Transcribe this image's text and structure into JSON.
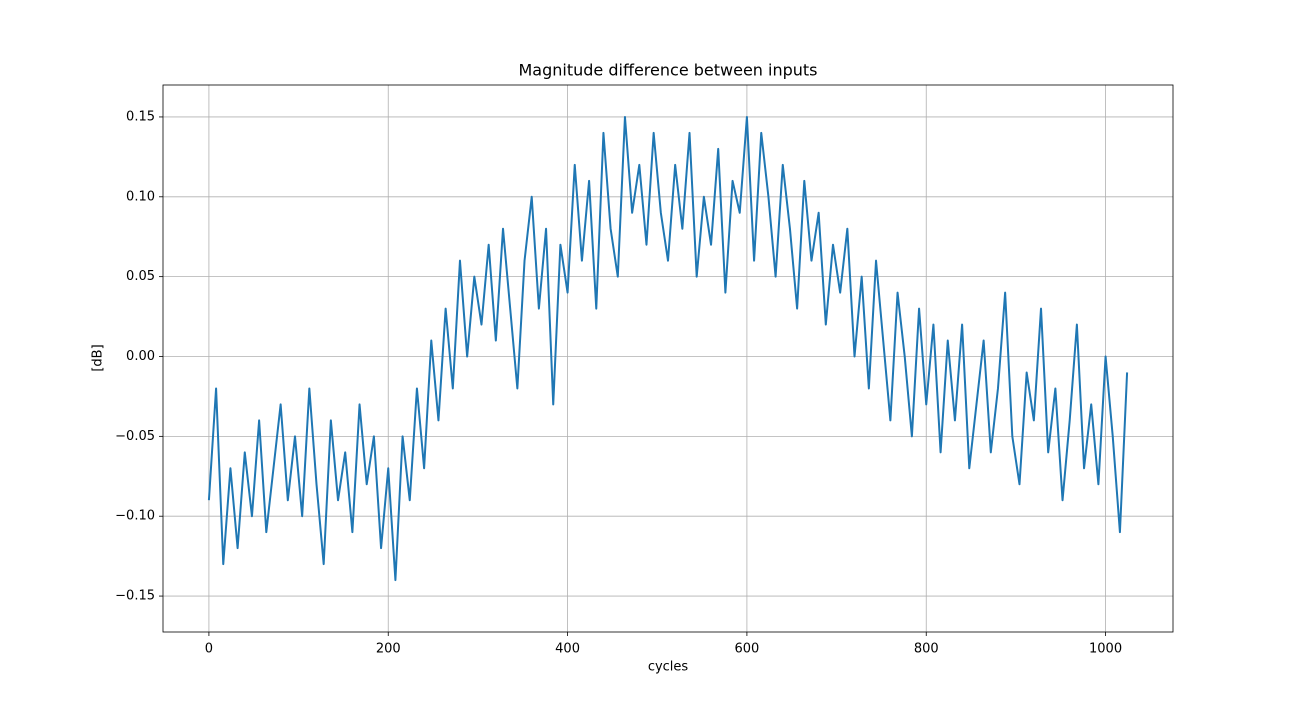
{
  "chart_data": {
    "type": "line",
    "title": "Magnitude difference between inputs",
    "xlabel": "cycles",
    "ylabel": "[dB]",
    "color": "#1f77b4",
    "grid": true,
    "xlim": [
      -51.2,
      1075.2
    ],
    "ylim": [
      -0.1725,
      0.17
    ],
    "xticks": [
      0,
      200,
      400,
      600,
      800,
      1000
    ],
    "yticks": [
      {
        "value": -0.15,
        "label": "−0.15"
      },
      {
        "value": -0.1,
        "label": "−0.10"
      },
      {
        "value": -0.05,
        "label": "−0.05"
      },
      {
        "value": 0,
        "label": "0.00"
      },
      0.05,
      {
        "value": 0.1,
        "label": "0.10"
      },
      0.15
    ],
    "x": [
      0,
      8,
      16,
      24,
      32,
      40,
      48,
      56,
      64,
      72,
      80,
      88,
      96,
      104,
      112,
      120,
      128,
      136,
      144,
      152,
      160,
      168,
      176,
      184,
      192,
      200,
      208,
      216,
      224,
      232,
      240,
      248,
      256,
      264,
      272,
      280,
      288,
      296,
      304,
      312,
      320,
      328,
      336,
      344,
      352,
      360,
      368,
      376,
      384,
      392,
      400,
      408,
      416,
      424,
      432,
      440,
      448,
      456,
      464,
      472,
      480,
      488,
      496,
      504,
      512,
      520,
      528,
      536,
      544,
      552,
      560,
      568,
      576,
      584,
      592,
      600,
      608,
      616,
      624,
      632,
      640,
      648,
      656,
      664,
      672,
      680,
      688,
      696,
      704,
      712,
      720,
      728,
      736,
      744,
      752,
      760,
      768,
      776,
      784,
      792,
      800,
      808,
      816,
      824,
      832,
      840,
      848,
      856,
      864,
      872,
      880,
      888,
      896,
      904,
      912,
      920,
      928,
      936,
      944,
      952,
      960,
      968,
      976,
      984,
      992,
      1000,
      1008,
      1016,
      1024
    ],
    "values": [
      -0.09,
      -0.02,
      -0.13,
      -0.07,
      -0.12,
      -0.06,
      -0.1,
      -0.04,
      -0.11,
      -0.07,
      -0.03,
      -0.09,
      -0.05,
      -0.1,
      -0.02,
      -0.08,
      -0.13,
      -0.04,
      -0.09,
      -0.06,
      -0.11,
      -0.03,
      -0.08,
      -0.05,
      -0.12,
      -0.07,
      -0.14,
      -0.05,
      -0.09,
      -0.02,
      -0.07,
      0.01,
      -0.04,
      0.03,
      -0.02,
      0.06,
      0.0,
      0.05,
      0.02,
      0.07,
      0.01,
      0.08,
      0.03,
      -0.02,
      0.06,
      0.1,
      0.03,
      0.08,
      -0.03,
      0.07,
      0.04,
      0.12,
      0.06,
      0.11,
      0.03,
      0.14,
      0.08,
      0.05,
      0.15,
      0.09,
      0.12,
      0.07,
      0.14,
      0.09,
      0.06,
      0.12,
      0.08,
      0.14,
      0.05,
      0.1,
      0.07,
      0.13,
      0.04,
      0.11,
      0.09,
      0.15,
      0.06,
      0.14,
      0.1,
      0.05,
      0.12,
      0.08,
      0.03,
      0.11,
      0.06,
      0.09,
      0.02,
      0.07,
      0.04,
      0.08,
      0.0,
      0.05,
      -0.02,
      0.06,
      0.01,
      -0.04,
      0.04,
      0.0,
      -0.05,
      0.03,
      -0.03,
      0.02,
      -0.06,
      0.01,
      -0.04,
      0.02,
      -0.07,
      -0.03,
      0.01,
      -0.06,
      -0.02,
      0.04,
      -0.05,
      -0.08,
      -0.01,
      -0.04,
      0.03,
      -0.06,
      -0.02,
      -0.09,
      -0.04,
      0.02,
      -0.07,
      -0.03,
      -0.08,
      0.0,
      -0.05,
      -0.11,
      -0.01
    ]
  }
}
